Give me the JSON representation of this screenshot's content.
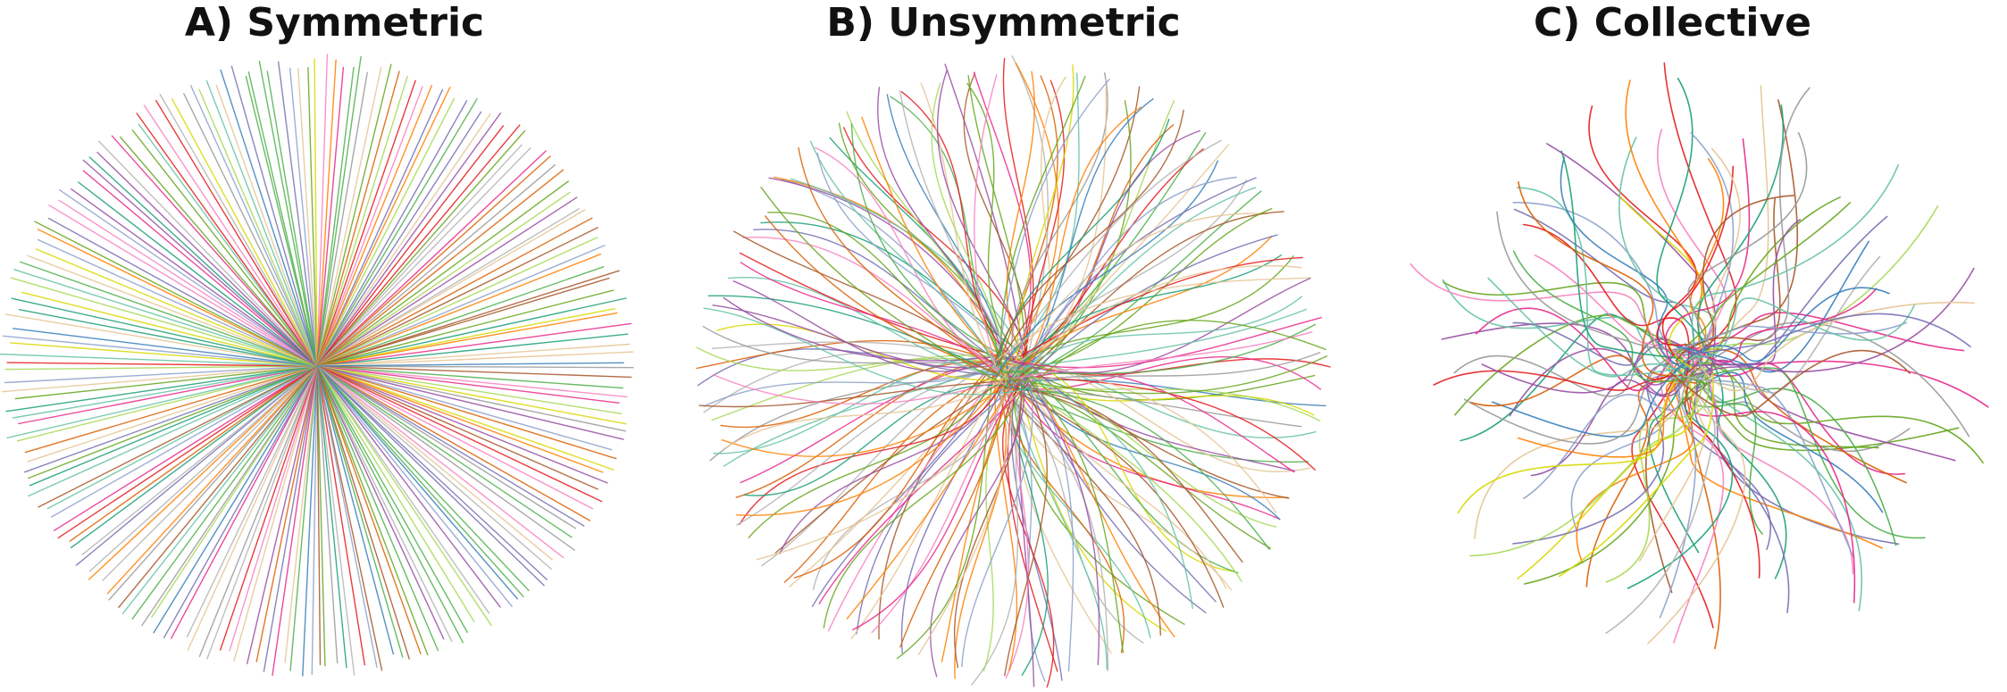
{
  "panels": [
    {
      "id": "a",
      "title": "A) Symmetric"
    },
    {
      "id": "b",
      "title": "B) Unsymmetric"
    },
    {
      "id": "c",
      "title": "C) Collective"
    }
  ],
  "palette": [
    "#e41a1c",
    "#377eb8",
    "#4daf4a",
    "#984ea3",
    "#ff7f00",
    "#d8d800",
    "#a65628",
    "#f781bf",
    "#999999",
    "#66c2a5",
    "#a6d854",
    "#8da0cb",
    "#e5c494",
    "#1b9e77",
    "#d95f02",
    "#7570b3",
    "#e7298a",
    "#66a61e",
    "#b3b3b3"
  ]
}
